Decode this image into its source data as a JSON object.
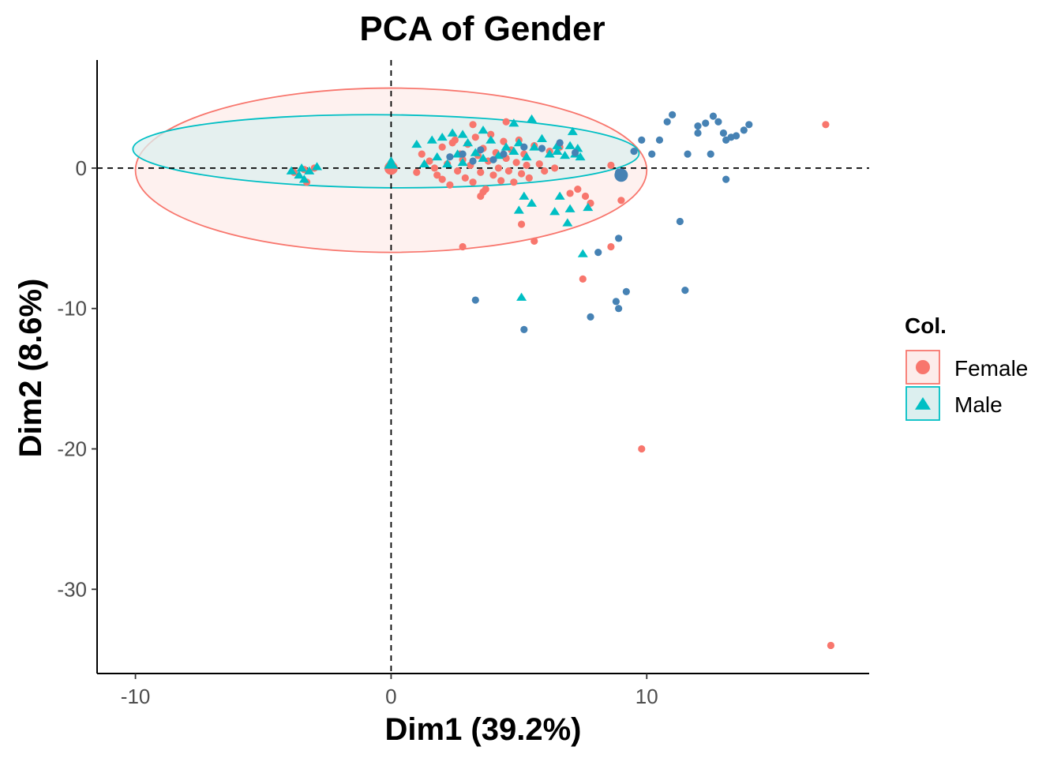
{
  "chart_data": {
    "type": "scatter",
    "title": "PCA of Gender",
    "xlabel": "Dim1 (39.2%)",
    "ylabel": "Dim2 (8.6%)",
    "xlim": [
      -11.5,
      18.7
    ],
    "ylim": [
      -36.0,
      7.7
    ],
    "x_ticks": [
      -10,
      0,
      10
    ],
    "y_ticks": [
      0,
      -10,
      -20,
      -30
    ],
    "grid": false,
    "reference_lines": {
      "x": 0,
      "y": 0,
      "style": "dashed"
    },
    "legend": {
      "title": "Col.",
      "placement": "right",
      "entries": [
        {
          "label": "Female",
          "color": "#F8766D",
          "shape": "circle"
        },
        {
          "label": "Male",
          "color": "#00BFC4",
          "shape": "triangle"
        }
      ]
    },
    "ellipses": [
      {
        "group": "Female",
        "center": [
          0.0,
          -0.15
        ],
        "rx": 10.0,
        "ry": 5.85,
        "color": "#F8766D",
        "fill": "#FDECEA"
      },
      {
        "group": "Male",
        "center": [
          -0.2,
          1.2
        ],
        "rx": 9.9,
        "ry": 2.6,
        "angle_deg": 0.5,
        "color": "#00BFC4",
        "fill": "#DCEFEF"
      }
    ],
    "series": [
      {
        "name": "Female",
        "color": "#F8766D",
        "shape": "circle",
        "points": [
          [
            -3.8,
            -0.3
          ],
          [
            -3.4,
            -0.1
          ],
          [
            -3.3,
            -1.0
          ],
          [
            -3.0,
            0.0
          ],
          [
            0.0,
            0.0
          ],
          [
            1.2,
            1.0
          ],
          [
            1.5,
            0.5
          ],
          [
            1.7,
            0.0
          ],
          [
            1.8,
            -0.5
          ],
          [
            2.0,
            -0.8
          ],
          [
            2.0,
            1.5
          ],
          [
            2.2,
            0.3
          ],
          [
            2.3,
            -1.2
          ],
          [
            2.4,
            1.8
          ],
          [
            2.5,
            2.0
          ],
          [
            2.6,
            -0.2
          ],
          [
            2.7,
            1.0
          ],
          [
            2.8,
            0.6
          ],
          [
            2.9,
            -0.7
          ],
          [
            3.0,
            1.7
          ],
          [
            3.1,
            0.2
          ],
          [
            3.2,
            -1.0
          ],
          [
            3.3,
            2.2
          ],
          [
            3.4,
            0.9
          ],
          [
            3.5,
            -0.3
          ],
          [
            3.6,
            1.4
          ],
          [
            3.7,
            -1.5
          ],
          [
            3.8,
            0.5
          ],
          [
            3.9,
            2.4
          ],
          [
            4.0,
            -0.5
          ],
          [
            4.1,
            1.1
          ],
          [
            4.2,
            0.0
          ],
          [
            4.3,
            -0.9
          ],
          [
            4.4,
            1.9
          ],
          [
            4.5,
            0.7
          ],
          [
            4.6,
            -0.2
          ],
          [
            4.7,
            1.3
          ],
          [
            4.8,
            -1.0
          ],
          [
            4.9,
            0.4
          ],
          [
            5.0,
            2.0
          ],
          [
            5.1,
            -0.4
          ],
          [
            5.2,
            1.0
          ],
          [
            5.3,
            0.2
          ],
          [
            5.4,
            -0.7
          ],
          [
            5.6,
            1.6
          ],
          [
            5.8,
            0.3
          ],
          [
            6.0,
            -0.2
          ],
          [
            6.2,
            1.2
          ],
          [
            6.4,
            0.0
          ],
          [
            6.6,
            1.5
          ],
          [
            3.2,
            3.1
          ],
          [
            4.5,
            3.3
          ],
          [
            1.0,
            -0.3
          ],
          [
            7.0,
            -1.8
          ],
          [
            7.3,
            -1.5
          ],
          [
            7.6,
            -2.0
          ],
          [
            7.8,
            -2.5
          ],
          [
            8.6,
            0.2
          ],
          [
            9.0,
            -2.3
          ],
          [
            3.5,
            -2.0
          ],
          [
            3.6,
            -1.7
          ],
          [
            5.1,
            -4.0
          ],
          [
            5.6,
            -5.2
          ],
          [
            2.8,
            -5.6
          ],
          [
            8.6,
            -5.6
          ],
          [
            7.5,
            -7.9
          ],
          [
            9.8,
            -20.0
          ],
          [
            17.0,
            3.1
          ],
          [
            17.2,
            -34.0
          ]
        ]
      },
      {
        "name": "Male",
        "color": "#00BFC4",
        "shape": "triangle",
        "points": [
          [
            -3.9,
            -0.2
          ],
          [
            -3.6,
            -0.5
          ],
          [
            -3.5,
            0.0
          ],
          [
            -3.4,
            -0.8
          ],
          [
            -3.2,
            -0.2
          ],
          [
            -2.9,
            0.1
          ],
          [
            0.0,
            0.1
          ],
          [
            0.0,
            0.5
          ],
          [
            1.0,
            1.7
          ],
          [
            1.3,
            0.3
          ],
          [
            1.6,
            2.0
          ],
          [
            1.8,
            0.8
          ],
          [
            2.0,
            2.2
          ],
          [
            2.2,
            0.3
          ],
          [
            2.4,
            2.5
          ],
          [
            2.6,
            1.0
          ],
          [
            2.8,
            0.4
          ],
          [
            3.0,
            1.8
          ],
          [
            3.3,
            1.1
          ],
          [
            3.6,
            0.7
          ],
          [
            3.9,
            2.0
          ],
          [
            4.2,
            0.9
          ],
          [
            4.5,
            1.5
          ],
          [
            4.8,
            1.2
          ],
          [
            5.0,
            1.8
          ],
          [
            5.3,
            0.8
          ],
          [
            5.6,
            1.5
          ],
          [
            5.9,
            2.1
          ],
          [
            6.2,
            1.0
          ],
          [
            6.5,
            1.6
          ],
          [
            6.8,
            0.9
          ],
          [
            7.0,
            1.6
          ],
          [
            7.2,
            1.0
          ],
          [
            7.4,
            0.8
          ],
          [
            4.8,
            3.2
          ],
          [
            5.5,
            3.5
          ],
          [
            7.1,
            2.6
          ],
          [
            7.3,
            1.4
          ],
          [
            6.5,
            1.2
          ],
          [
            2.8,
            2.4
          ],
          [
            3.6,
            2.7
          ],
          [
            5.2,
            -2.0
          ],
          [
            5.0,
            -3.0
          ],
          [
            6.6,
            -2.0
          ],
          [
            5.5,
            -2.5
          ],
          [
            7.0,
            -2.9
          ],
          [
            6.4,
            -3.1
          ],
          [
            6.9,
            -3.9
          ],
          [
            7.7,
            -2.8
          ],
          [
            7.5,
            -6.1
          ],
          [
            5.1,
            -9.2
          ]
        ]
      },
      {
        "name": "",
        "color": "#4682B4",
        "shape": "circle",
        "points": [
          [
            2.3,
            0.8
          ],
          [
            2.8,
            1.0
          ],
          [
            3.2,
            0.5
          ],
          [
            3.5,
            1.3
          ],
          [
            4.0,
            0.6
          ],
          [
            4.4,
            1.0
          ],
          [
            5.2,
            1.5
          ],
          [
            5.9,
            1.4
          ],
          [
            6.6,
            1.8
          ],
          [
            7.2,
            1.1
          ],
          [
            8.9,
            -0.3
          ],
          [
            9.5,
            1.2
          ],
          [
            9.8,
            2.0
          ],
          [
            10.2,
            1.0
          ],
          [
            10.5,
            2.0
          ],
          [
            10.8,
            3.3
          ],
          [
            11.0,
            3.8
          ],
          [
            11.6,
            1.0
          ],
          [
            12.0,
            3.0
          ],
          [
            12.0,
            2.5
          ],
          [
            12.3,
            3.2
          ],
          [
            12.5,
            1.0
          ],
          [
            12.6,
            3.7
          ],
          [
            12.8,
            3.3
          ],
          [
            13.0,
            2.5
          ],
          [
            13.1,
            2.0
          ],
          [
            13.3,
            2.2
          ],
          [
            13.5,
            2.3
          ],
          [
            13.8,
            2.7
          ],
          [
            14.0,
            3.1
          ],
          [
            13.1,
            -0.8
          ],
          [
            11.3,
            -3.8
          ],
          [
            11.5,
            -8.7
          ],
          [
            8.9,
            -5.0
          ],
          [
            8.1,
            -6.0
          ],
          [
            9.2,
            -8.8
          ],
          [
            8.8,
            -9.5
          ],
          [
            8.9,
            -10.0
          ],
          [
            7.8,
            -10.6
          ],
          [
            3.3,
            -9.4
          ],
          [
            5.2,
            -11.5
          ]
        ]
      }
    ],
    "centroids": [
      {
        "x": 0.0,
        "y": 0.0,
        "color": "#F8766D",
        "shape": "circle"
      },
      {
        "x": 0.0,
        "y": 0.3,
        "color": "#00BFC4",
        "shape": "triangle"
      },
      {
        "x": 9.0,
        "y": -0.5,
        "color": "#4682B4",
        "shape": "circle"
      }
    ]
  }
}
